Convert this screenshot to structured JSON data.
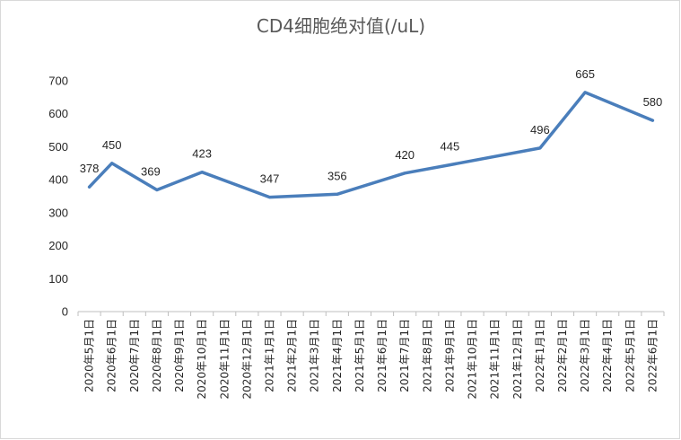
{
  "chart_data": {
    "type": "line",
    "title": "CD4细胞绝对值(/uL)",
    "xlabel": "",
    "ylabel": "",
    "ylim": [
      0,
      700
    ],
    "yticks": [
      0,
      100,
      200,
      300,
      400,
      500,
      600,
      700
    ],
    "grid": false,
    "legend": "none",
    "categories": [
      "2020年5月1日",
      "2020年6月1日",
      "2020年7月1日",
      "2020年8月1日",
      "2020年9月1日",
      "2020年10月1日",
      "2020年11月1日",
      "2020年12月1日",
      "2021年1月1日",
      "2021年2月1日",
      "2021年3月1日",
      "2021年4月1日",
      "2021年5月1日",
      "2021年6月1日",
      "2021年7月1日",
      "2021年8月1日",
      "2021年9月1日",
      "2021年10月1日",
      "2021年11月1日",
      "2021年12月1日",
      "2022年1月1日",
      "2022年2月1日",
      "2022年3月1日",
      "2022年4月1日",
      "2022年5月1日",
      "2022年6月1日"
    ],
    "points": [
      {
        "x": "2020年5月1日",
        "y": 378,
        "label": "378"
      },
      {
        "x": "2020年6月1日",
        "y": 450,
        "label": "450"
      },
      {
        "x": "2020年8月1日",
        "y": 369,
        "label": "369"
      },
      {
        "x": "2020年10月1日",
        "y": 423,
        "label": "423"
      },
      {
        "x": "2021年1月1日",
        "y": 347,
        "label": "347"
      },
      {
        "x": "2021年4月1日",
        "y": 356,
        "label": "356"
      },
      {
        "x": "2021年7月1日",
        "y": 420,
        "label": "420"
      },
      {
        "x": "2021年9月1日",
        "y": 445,
        "label": "445"
      },
      {
        "x": "2022年1月1日",
        "y": 496,
        "label": "496"
      },
      {
        "x": "2022年3月1日",
        "y": 665,
        "label": "665"
      },
      {
        "x": "2022年6月1日",
        "y": 580,
        "label": "580"
      }
    ],
    "colors": {
      "line": "#4a7ebb",
      "axis": "#bfbfbf",
      "text": "#262626",
      "title": "#595959"
    }
  }
}
